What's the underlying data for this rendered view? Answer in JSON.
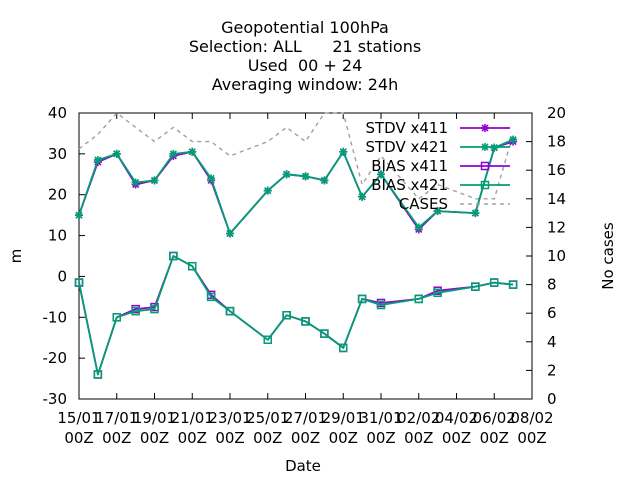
{
  "chart_data": {
    "type": "line",
    "title": [
      "Geopotential 100hPa",
      "Selection: ALL      21 stations",
      "Used  00 + 24",
      "Averaging window: 24h"
    ],
    "xlabel": "Date",
    "ylabel": "m",
    "y2label": "No cases",
    "ylim": [
      -30,
      40
    ],
    "y2lim": [
      0,
      20
    ],
    "yticks": [
      "40",
      "30",
      "20",
      "10",
      "0",
      "-10",
      "-20",
      "-30"
    ],
    "y2ticks": [
      "20",
      "18",
      "16",
      "14",
      "12",
      "10",
      "8",
      "6",
      "4",
      "2",
      "0"
    ],
    "xticks": [
      {
        "day": 0,
        "l1": "15/01",
        "l2": "00Z"
      },
      {
        "day": 2,
        "l1": "17/01",
        "l2": "00Z"
      },
      {
        "day": 4,
        "l1": "19/01",
        "l2": "00Z"
      },
      {
        "day": 6,
        "l1": "21/01",
        "l2": "00Z"
      },
      {
        "day": 8,
        "l1": "23/01",
        "l2": "00Z"
      },
      {
        "day": 10,
        "l1": "25/01",
        "l2": "00Z"
      },
      {
        "day": 12,
        "l1": "27/01",
        "l2": "00Z"
      },
      {
        "day": 14,
        "l1": "29/01",
        "l2": "00Z"
      },
      {
        "day": 16,
        "l1": "31/01",
        "l2": "00Z"
      },
      {
        "day": 18,
        "l1": "02/02",
        "l2": "00Z"
      },
      {
        "day": 20,
        "l1": "04/02",
        "l2": "00Z"
      },
      {
        "day": 22,
        "l1": "06/02",
        "l2": "00Z"
      },
      {
        "day": 24,
        "l1": "08/02",
        "l2": "00Z"
      }
    ],
    "legend_position": "top-right",
    "colors": {
      "x411": "#9400d3",
      "x421": "#009e73",
      "cases": "#a0a0a0"
    },
    "series": [
      {
        "name": "STDV x411",
        "axis": "y",
        "marker": "star",
        "color": "#9400d3",
        "x": [
          0,
          1,
          2,
          3,
          4,
          5,
          6,
          7,
          8,
          10,
          11,
          12,
          13,
          14,
          15,
          16,
          18,
          19,
          21,
          22,
          23
        ],
        "y": [
          15,
          28,
          30,
          22.5,
          23.5,
          29.5,
          30.5,
          23.5,
          10.5,
          21,
          25,
          24.5,
          23.5,
          30.5,
          19.5,
          25,
          11.5,
          16,
          15.5,
          31.5,
          33
        ]
      },
      {
        "name": "STDV x421",
        "axis": "y",
        "marker": "star",
        "color": "#009e73",
        "x": [
          0,
          1,
          2,
          3,
          4,
          5,
          6,
          7,
          8,
          10,
          11,
          12,
          13,
          14,
          15,
          16,
          18,
          19,
          21,
          22,
          23
        ],
        "y": [
          15,
          28.5,
          30,
          23,
          23.5,
          30,
          30.5,
          24,
          10.5,
          21,
          25,
          24.5,
          23.5,
          30.5,
          19.5,
          25,
          12,
          16,
          15.5,
          31.5,
          33.5
        ]
      },
      {
        "name": "BIAS x411",
        "axis": "y",
        "marker": "square",
        "color": "#9400d3",
        "x": [
          0,
          1,
          2,
          3,
          4,
          5,
          6,
          7,
          8,
          10,
          11,
          12,
          13,
          14,
          15,
          16,
          18,
          19,
          21,
          22,
          23
        ],
        "y": [
          -1.5,
          -24,
          -10,
          -8,
          -7.5,
          5,
          2.5,
          -4.5,
          -8.5,
          -15.5,
          -9.5,
          -11,
          -14,
          -17.5,
          -5.5,
          -6.5,
          -5.5,
          -3.5,
          -2.5,
          -1.5,
          -2
        ]
      },
      {
        "name": "BIAS x421",
        "axis": "y",
        "marker": "square",
        "color": "#009e73",
        "x": [
          0,
          1,
          2,
          3,
          4,
          5,
          6,
          7,
          8,
          10,
          11,
          12,
          13,
          14,
          15,
          16,
          18,
          19,
          21,
          22,
          23
        ],
        "y": [
          -1.5,
          -24,
          -10,
          -8.5,
          -8,
          5,
          2.5,
          -5,
          -8.5,
          -15.5,
          -9.5,
          -11,
          -14,
          -17.5,
          -5.5,
          -7,
          -5.5,
          -4,
          -2.5,
          -1.5,
          -2
        ]
      },
      {
        "name": "CASES",
        "axis": "y2",
        "marker": "none",
        "color": "#a0a0a0",
        "dashed": true,
        "x": [
          0,
          1,
          2,
          3,
          4,
          5,
          6,
          7,
          8,
          10,
          11,
          12,
          13,
          14,
          15,
          16,
          18,
          19,
          21,
          22,
          23
        ],
        "y": [
          17.5,
          18.5,
          20,
          19,
          18,
          19,
          18,
          18,
          17,
          18,
          19,
          18,
          20,
          20,
          15,
          17,
          14,
          15,
          14,
          14,
          18.5
        ]
      }
    ]
  }
}
